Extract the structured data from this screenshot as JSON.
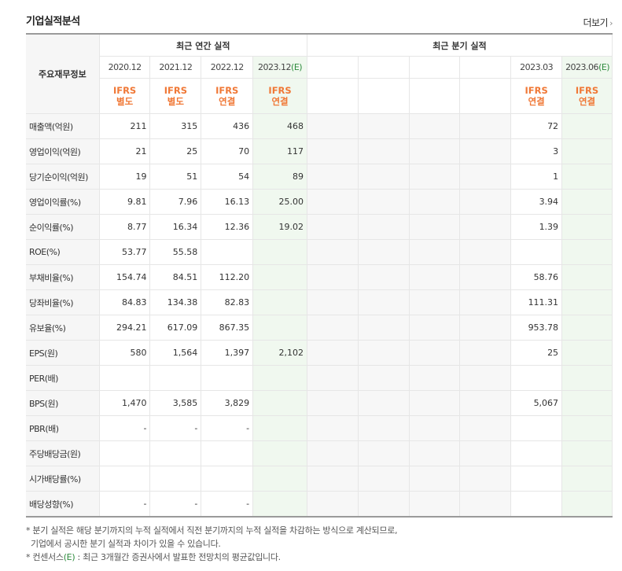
{
  "title": "기업실적분석",
  "more_label": "더보기",
  "header": {
    "row_label": "주요재무정보",
    "annual_label": "최근 연간 실적",
    "quarter_label": "최근 분기 실적",
    "annual_periods": [
      "2020.12",
      "2021.12",
      "2022.12",
      "2023.12(E)"
    ],
    "quarter_periods": [
      "",
      "",
      "",
      "",
      "2023.03",
      "2023.06(E)"
    ],
    "annual_ifrs": [
      "IFRS\n별도",
      "IFRS\n별도",
      "IFRS\n연결",
      "IFRS\n연결"
    ],
    "quarter_ifrs": [
      "",
      "",
      "",
      "",
      "IFRS\n연결",
      "IFRS\n연결"
    ]
  },
  "rows": [
    {
      "label": "매출액(억원)",
      "annual": [
        "211",
        "315",
        "436",
        "468"
      ],
      "quarter": [
        "",
        "",
        "",
        "",
        "72",
        ""
      ]
    },
    {
      "label": "영업이익(억원)",
      "annual": [
        "21",
        "25",
        "70",
        "117"
      ],
      "quarter": [
        "",
        "",
        "",
        "",
        "3",
        ""
      ]
    },
    {
      "label": "당기순이익(억원)",
      "annual": [
        "19",
        "51",
        "54",
        "89"
      ],
      "quarter": [
        "",
        "",
        "",
        "",
        "1",
        ""
      ]
    },
    {
      "label": "영업이익률(%)",
      "annual": [
        "9.81",
        "7.96",
        "16.13",
        "25.00"
      ],
      "quarter": [
        "",
        "",
        "",
        "",
        "3.94",
        ""
      ]
    },
    {
      "label": "순이익률(%)",
      "annual": [
        "8.77",
        "16.34",
        "12.36",
        "19.02"
      ],
      "quarter": [
        "",
        "",
        "",
        "",
        "1.39",
        ""
      ]
    },
    {
      "label": "ROE(%)",
      "annual": [
        "53.77",
        "55.58",
        "",
        ""
      ],
      "quarter": [
        "",
        "",
        "",
        "",
        "",
        ""
      ]
    },
    {
      "label": "부채비율(%)",
      "annual": [
        "154.74",
        "84.51",
        "112.20",
        ""
      ],
      "quarter": [
        "",
        "",
        "",
        "",
        "58.76",
        ""
      ]
    },
    {
      "label": "당좌비율(%)",
      "annual": [
        "84.83",
        "134.38",
        "82.83",
        ""
      ],
      "quarter": [
        "",
        "",
        "",
        "",
        "111.31",
        ""
      ]
    },
    {
      "label": "유보율(%)",
      "annual": [
        "294.21",
        "617.09",
        "867.35",
        ""
      ],
      "quarter": [
        "",
        "",
        "",
        "",
        "953.78",
        ""
      ]
    },
    {
      "label": "EPS(원)",
      "annual": [
        "580",
        "1,564",
        "1,397",
        "2,102"
      ],
      "quarter": [
        "",
        "",
        "",
        "",
        "25",
        ""
      ]
    },
    {
      "label": "PER(배)",
      "annual": [
        "",
        "",
        "",
        ""
      ],
      "quarter": [
        "",
        "",
        "",
        "",
        "",
        ""
      ]
    },
    {
      "label": "BPS(원)",
      "annual": [
        "1,470",
        "3,585",
        "3,829",
        ""
      ],
      "quarter": [
        "",
        "",
        "",
        "",
        "5,067",
        ""
      ]
    },
    {
      "label": "PBR(배)",
      "annual": [
        "-",
        "-",
        "-",
        ""
      ],
      "quarter": [
        "",
        "",
        "",
        "",
        "",
        ""
      ]
    },
    {
      "label": "주당배당금(원)",
      "annual": [
        "",
        "",
        "",
        ""
      ],
      "quarter": [
        "",
        "",
        "",
        "",
        "",
        ""
      ]
    },
    {
      "label": "시가배당률(%)",
      "annual": [
        "",
        "",
        "",
        ""
      ],
      "quarter": [
        "",
        "",
        "",
        "",
        "",
        ""
      ]
    },
    {
      "label": "배당성향(%)",
      "annual": [
        "-",
        "-",
        "-",
        ""
      ],
      "quarter": [
        "",
        "",
        "",
        "",
        "",
        ""
      ]
    }
  ],
  "notes": [
    "* 분기 실적은 해당 분기까지의 누적 실적에서 직전 분기까지의 누적 실적을 차감하는 방식으로 계산되므로,",
    "  기업에서 공시한 분기 실적과 차이가 있을 수 있습니다.",
    "* 컨센서스(E) : 최근 3개월간 증권사에서 발표한 전망치의 평균값입니다."
  ],
  "colors": {
    "ifrs": "#f07836",
    "estimate_bg": "#f0f8ef",
    "quarter_bg": "#f7f7f7",
    "e_mark": "#2e8b3d"
  }
}
